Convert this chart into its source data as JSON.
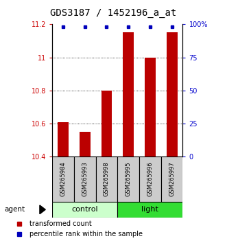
{
  "title": "GDS3187 / 1452196_a_at",
  "samples": [
    "GSM265984",
    "GSM265993",
    "GSM265998",
    "GSM265995",
    "GSM265996",
    "GSM265997"
  ],
  "groups": [
    "control",
    "control",
    "control",
    "light",
    "light",
    "light"
  ],
  "red_values": [
    10.61,
    10.55,
    10.8,
    11.15,
    11.0,
    11.15
  ],
  "blue_values": [
    98,
    98,
    98,
    98,
    98,
    98
  ],
  "ylim_left": [
    10.4,
    11.2
  ],
  "ylim_right": [
    0,
    100
  ],
  "yticks_left": [
    10.4,
    10.6,
    10.8,
    11.0,
    11.2
  ],
  "yticks_right": [
    0,
    25,
    50,
    75,
    100
  ],
  "ytick_labels_left": [
    "10.4",
    "10.6",
    "10.8",
    "11",
    "11.2"
  ],
  "ytick_labels_right": [
    "0",
    "25",
    "50",
    "75",
    "100%"
  ],
  "grid_values": [
    10.6,
    10.8,
    11.0
  ],
  "bar_color": "#bb0000",
  "dot_color": "#0000bb",
  "left_tick_color": "#cc0000",
  "right_tick_color": "#0000cc",
  "control_color": "#ccffcc",
  "light_color": "#33dd33",
  "sample_box_color": "#cccccc",
  "bar_width": 0.5,
  "group_label_fontsize": 8,
  "tick_fontsize": 7,
  "title_fontsize": 10,
  "legend_fontsize": 7
}
